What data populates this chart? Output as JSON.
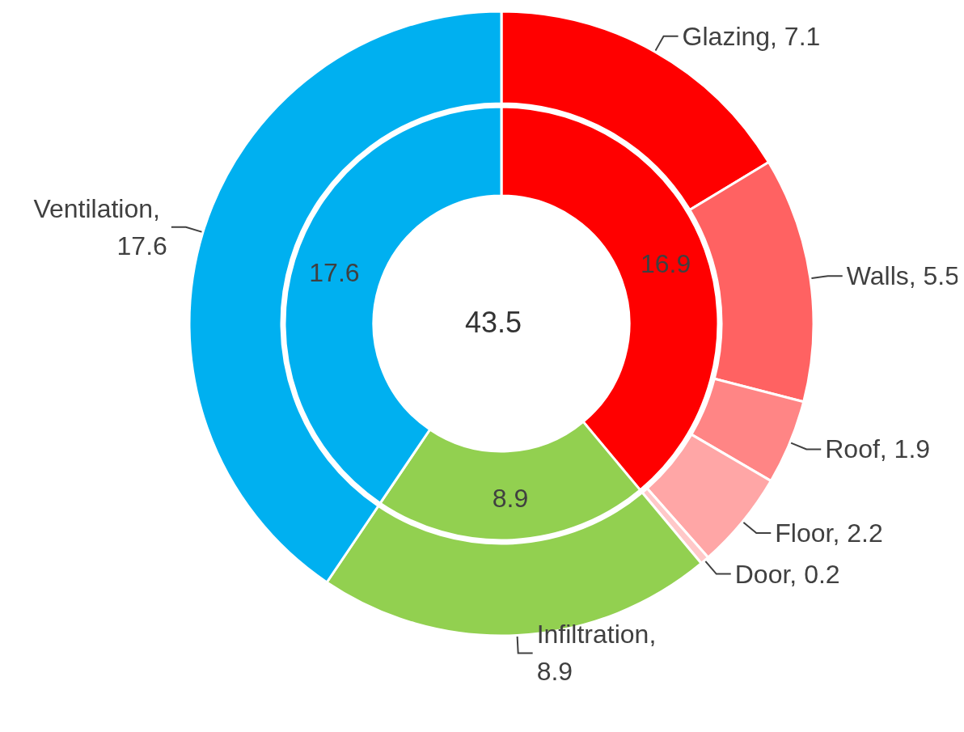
{
  "chart_data": [
    {
      "type": "donut",
      "data_labels": true,
      "annotations": [
        "43.5"
      ],
      "categories": [
        null,
        null,
        null
      ],
      "values": [
        16.9,
        8.9,
        17.6
      ],
      "colors": [
        "#ff0000",
        "#92d050",
        "#00b0f0"
      ]
    },
    {
      "type": "donut",
      "categories": [
        null,
        null,
        null,
        null,
        null,
        null,
        null
      ],
      "values": [
        7.1,
        5.5,
        1.9,
        2.2,
        0.2,
        8.9,
        17.6
      ],
      "value_labels": [
        "Glazing, 7.1",
        "Walls, 5.5",
        "Roof, 1.9",
        "Floor, 2.2",
        "Door, 0.2",
        "Infiltration, 8.9",
        "Ventilation, 17.6"
      ],
      "colors": [
        "#ff0000",
        "#ff6262",
        "#ff8585",
        "#ffa6a6",
        "#ffc8c8",
        "#92d050",
        "#00b0f0"
      ]
    }
  ]
}
